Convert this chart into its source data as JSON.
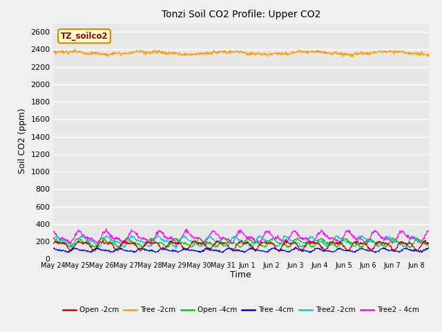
{
  "title": "Tonzi Soil CO2 Profile: Upper CO2",
  "ylabel": "Soil CO2 (ppm)",
  "xlabel": "Time",
  "fig_facecolor": "#f0f0f0",
  "plot_bg_color": "#e8e8e8",
  "ylim": [
    0,
    2700
  ],
  "yticks": [
    0,
    200,
    400,
    600,
    800,
    1000,
    1200,
    1400,
    1600,
    1800,
    2000,
    2200,
    2400,
    2600
  ],
  "x_tick_labels": [
    "May 24",
    "May 25",
    "May 26",
    "May 27",
    "May 28",
    "May 29",
    "May 30",
    "May 31",
    "Jun 1",
    "Jun 2",
    "Jun 3",
    "Jun 4",
    "Jun 5",
    "Jun 6",
    "Jun 7",
    "Jun 8"
  ],
  "series_order": [
    "Tree2_4cm",
    "Tree2_2cm",
    "Open_4cm",
    "Open_2cm",
    "Tree_4cm",
    "Tree_2cm"
  ],
  "series": {
    "Open_2cm": {
      "color": "#cc0000",
      "mean": 160,
      "amp1": 40,
      "amp2": 20,
      "freq1": 1.05,
      "freq2": 2.1,
      "phase1": 0.0,
      "phase2": 1.2,
      "noise": 8
    },
    "Tree_2cm": {
      "color": "#ff9900",
      "mean": 2360,
      "amp1": 15,
      "amp2": 5,
      "freq1": 0.3,
      "freq2": 1.2,
      "phase1": 0.5,
      "phase2": 0.8,
      "noise": 10
    },
    "Open_4cm": {
      "color": "#00cc00",
      "mean": 185,
      "amp1": 35,
      "amp2": 18,
      "freq1": 1.0,
      "freq2": 2.0,
      "phase1": 0.8,
      "phase2": 1.5,
      "noise": 7
    },
    "Tree_4cm": {
      "color": "#0000cc",
      "mean": 100,
      "amp1": 15,
      "amp2": 8,
      "freq1": 1.1,
      "freq2": 2.2,
      "phase1": 1.2,
      "phase2": 2.0,
      "noise": 5
    },
    "Tree2_2cm": {
      "color": "#00cccc",
      "mean": 200,
      "amp1": 45,
      "amp2": 22,
      "freq1": 0.95,
      "freq2": 1.9,
      "phase1": 0.3,
      "phase2": 0.7,
      "noise": 8
    },
    "Tree2_4cm": {
      "color": "#ff00ff",
      "mean": 250,
      "amp1": 50,
      "amp2": 25,
      "freq1": 0.9,
      "freq2": 1.8,
      "phase1": 1.5,
      "phase2": 2.5,
      "noise": 10
    }
  },
  "legend_labels": [
    "Open -2cm",
    "Tree -2cm",
    "Open -4cm",
    "Tree -4cm",
    "Tree2 -2cm",
    "Tree2 - 4cm"
  ],
  "legend_colors": [
    "#cc0000",
    "#ff9900",
    "#00cc00",
    "#0000cc",
    "#00cccc",
    "#ff00ff"
  ],
  "annotation_text": "TZ_soilco2",
  "annotation_facecolor": "#ffffcc",
  "annotation_edgecolor": "#cc8800",
  "annotation_textcolor": "#990000"
}
